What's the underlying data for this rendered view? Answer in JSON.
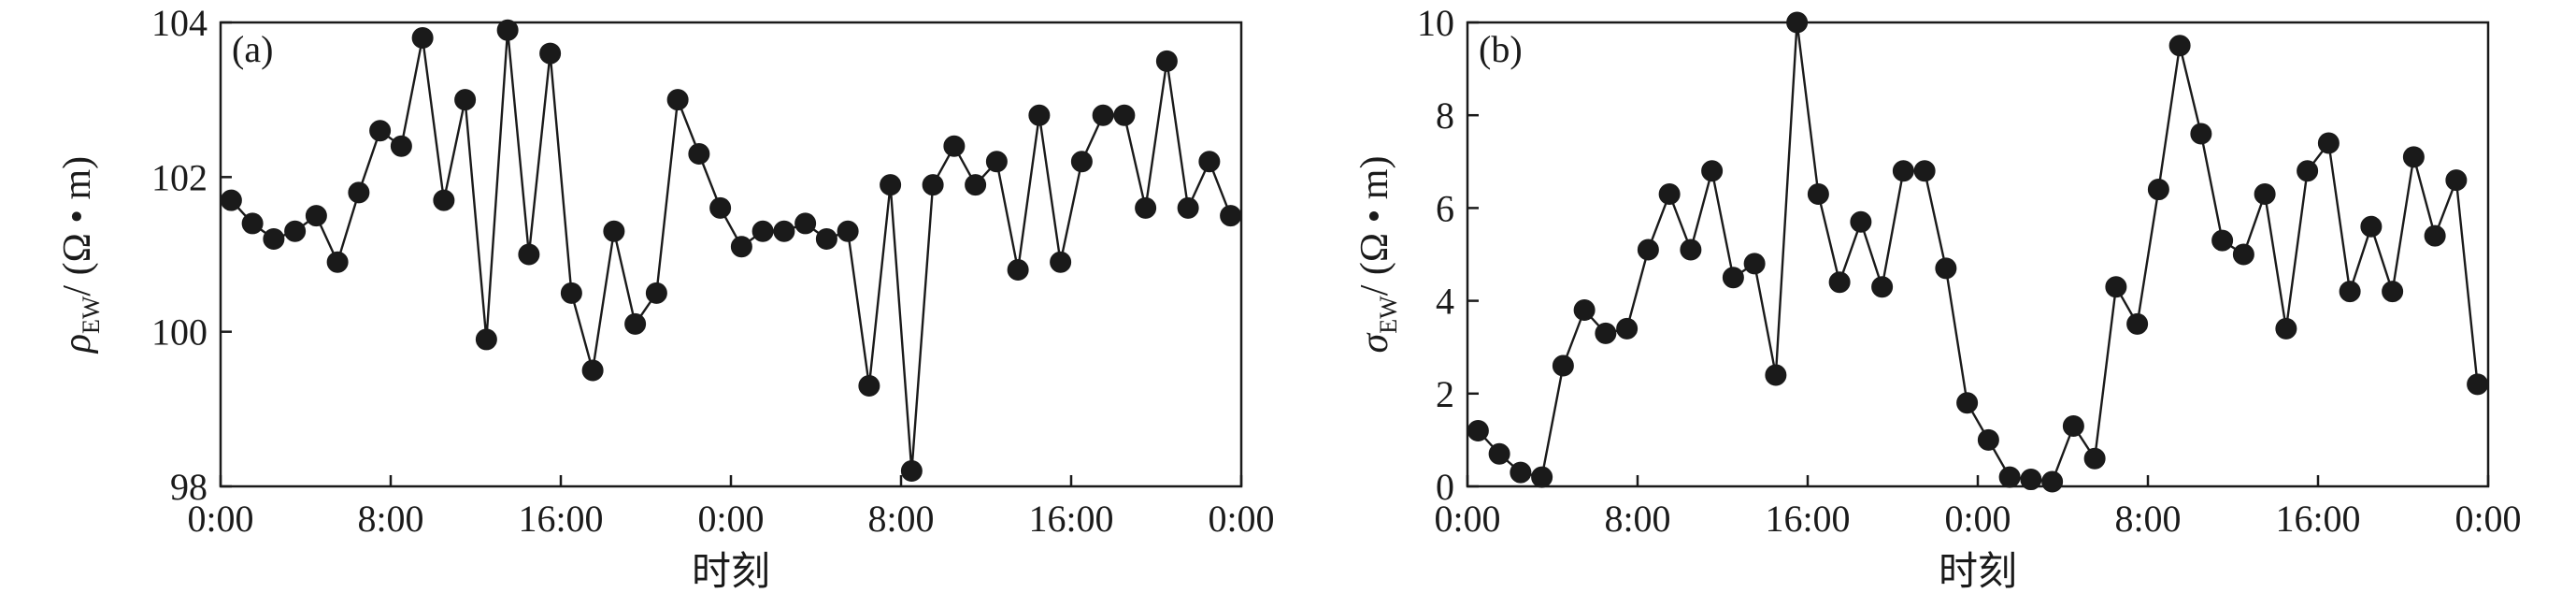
{
  "chart_data": [
    {
      "type": "line",
      "panel_label": "(a)",
      "ylabel": {
        "symbol": "ρ",
        "subscript": "EW",
        "unit": "/ (Ω • m)"
      },
      "xlabel": "时刻",
      "x_tick_labels": [
        "0:00",
        "8:00",
        "16:00",
        "0:00",
        "8:00",
        "16:00",
        "0:00"
      ],
      "x_tick_hours": [
        0,
        8,
        16,
        24,
        32,
        40,
        48
      ],
      "xlim": [
        0,
        48
      ],
      "ylim": [
        98,
        104
      ],
      "y_ticks": [
        98,
        100,
        102,
        104
      ],
      "grid": false,
      "marker": "filled-circle",
      "color": "#1a1a1a",
      "x": [
        0.5,
        1.5,
        2.5,
        3.5,
        4.5,
        5.5,
        6.5,
        7.5,
        8.5,
        9.5,
        10.5,
        11.5,
        12.5,
        13.5,
        14.5,
        15.5,
        16.5,
        17.5,
        18.5,
        19.5,
        20.5,
        21.5,
        22.5,
        23.5,
        24.5,
        25.5,
        26.5,
        27.5,
        28.5,
        29.5,
        30.5,
        31.5,
        32.5,
        33.5,
        34.5,
        35.5,
        36.5,
        37.5,
        38.5,
        39.5,
        40.5,
        41.5,
        42.5,
        43.5,
        44.5,
        45.5,
        46.5,
        47.5
      ],
      "values": [
        101.7,
        101.4,
        101.2,
        101.3,
        101.5,
        100.9,
        101.8,
        102.6,
        102.4,
        103.8,
        101.7,
        103.0,
        99.9,
        103.9,
        101.0,
        103.6,
        100.5,
        99.5,
        101.3,
        100.1,
        100.5,
        103.0,
        102.3,
        101.6,
        101.1,
        101.3,
        101.3,
        101.4,
        101.2,
        101.3,
        99.3,
        101.9,
        98.2,
        101.9,
        102.4,
        101.9,
        102.2,
        100.8,
        102.8,
        100.9,
        102.2,
        102.8,
        102.8,
        101.6,
        103.5,
        101.6,
        102.2,
        101.5
      ]
    },
    {
      "type": "line",
      "panel_label": "(b)",
      "ylabel": {
        "symbol": "σ",
        "subscript": "EW",
        "unit": "/ (Ω • m)"
      },
      "xlabel": "时刻",
      "x_tick_labels": [
        "0:00",
        "8:00",
        "16:00",
        "0:00",
        "8:00",
        "16:00",
        "0:00"
      ],
      "x_tick_hours": [
        0,
        8,
        16,
        24,
        32,
        40,
        48
      ],
      "xlim": [
        0,
        48
      ],
      "ylim": [
        0,
        10
      ],
      "y_ticks": [
        0,
        2,
        4,
        6,
        8,
        10
      ],
      "grid": false,
      "marker": "filled-circle",
      "color": "#1a1a1a",
      "x": [
        0.5,
        1.5,
        2.5,
        3.5,
        4.5,
        5.5,
        6.5,
        7.5,
        8.5,
        9.5,
        10.5,
        11.5,
        12.5,
        13.5,
        14.5,
        15.5,
        16.5,
        17.5,
        18.5,
        19.5,
        20.5,
        21.5,
        22.5,
        23.5,
        24.5,
        25.5,
        26.5,
        27.5,
        28.5,
        29.5,
        30.5,
        31.5,
        32.5,
        33.5,
        34.5,
        35.5,
        36.5,
        37.5,
        38.5,
        39.5,
        40.5,
        41.5,
        42.5,
        43.5,
        44.5,
        45.5,
        46.5,
        47.5
      ],
      "values": [
        1.2,
        0.7,
        0.3,
        0.2,
        2.6,
        3.8,
        3.3,
        3.4,
        5.1,
        6.3,
        5.1,
        6.8,
        4.5,
        4.8,
        2.4,
        10.0,
        6.3,
        4.4,
        5.7,
        4.3,
        6.8,
        6.8,
        4.7,
        1.8,
        1.0,
        0.2,
        0.15,
        0.1,
        1.3,
        0.6,
        4.3,
        3.5,
        6.4,
        9.5,
        7.6,
        5.3,
        5.0,
        6.3,
        3.4,
        6.8,
        7.4,
        4.2,
        5.6,
        4.2,
        7.1,
        5.4,
        6.6,
        2.2
      ]
    }
  ]
}
